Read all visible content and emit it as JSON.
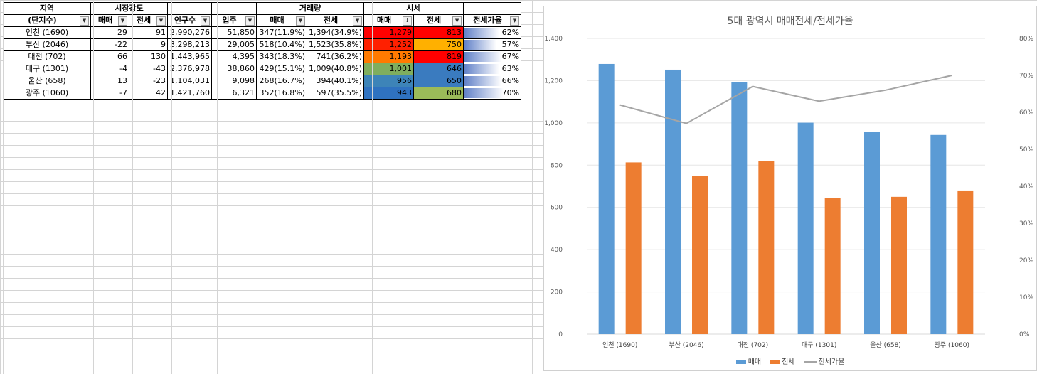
{
  "table": {
    "header1": [
      "지역",
      "시장강도",
      "",
      "",
      "",
      "거래량",
      "",
      "시세",
      "",
      ""
    ],
    "header2": [
      "(단지수)",
      "매매",
      "전세",
      "인구수",
      "입주",
      "매매",
      "전세",
      "매매",
      "전세",
      "전세가율"
    ],
    "sort_indicator": "↓",
    "rows": [
      {
        "region": "인천 (1690)",
        "s_buy": "29",
        "s_rent": "91",
        "pop": "2,990,276",
        "move_in": "51,850",
        "v_buy": "347(11.9%)",
        "v_rent": "1,394(34.9%)",
        "p_buy": "1,279",
        "p_rent": "813",
        "ratio": "62%",
        "ratio_val": 62,
        "c_buy": "#ff0000",
        "c_rent": "#ff0000"
      },
      {
        "region": "부산 (2046)",
        "s_buy": "-22",
        "s_rent": "9",
        "pop": "3,298,213",
        "move_in": "29,005",
        "v_buy": "518(10.4%)",
        "v_rent": "1,523(35.8%)",
        "p_buy": "1,252",
        "p_rent": "750",
        "ratio": "57%",
        "ratio_val": 57,
        "c_buy": "#ff2000",
        "c_rent": "#ffb000"
      },
      {
        "region": "대전 (702)",
        "s_buy": "66",
        "s_rent": "130",
        "pop": "1,443,965",
        "move_in": "4,395",
        "v_buy": "343(18.3%)",
        "v_rent": "741(36.2%)",
        "p_buy": "1,193",
        "p_rent": "819",
        "ratio": "67%",
        "ratio_val": 67,
        "c_buy": "#ff7a00",
        "c_rent": "#ff0000"
      },
      {
        "region": "대구 (1301)",
        "s_buy": "-4",
        "s_rent": "-43",
        "pop": "2,376,978",
        "move_in": "38,860",
        "v_buy": "429(15.1%)",
        "v_rent": "1,009(40.8%)",
        "p_buy": "1,001",
        "p_rent": "646",
        "ratio": "63%",
        "ratio_val": 63,
        "c_buy": "#7fae5e",
        "c_rent": "#3a7bbf"
      },
      {
        "region": "울산 (658)",
        "s_buy": "13",
        "s_rent": "-23",
        "pop": "1,104,031",
        "move_in": "9,098",
        "v_buy": "268(16.7%)",
        "v_rent": "394(40.1%)",
        "p_buy": "956",
        "p_rent": "650",
        "ratio": "66%",
        "ratio_val": 66,
        "c_buy": "#3d84b8",
        "c_rent": "#3a7bbf"
      },
      {
        "region": "광주 (1060)",
        "s_buy": "-7",
        "s_rent": "42",
        "pop": "1,421,760",
        "move_in": "6,321",
        "v_buy": "352(16.8%)",
        "v_rent": "597(35.5%)",
        "p_buy": "943",
        "p_rent": "680",
        "ratio": "70%",
        "ratio_val": 70,
        "c_buy": "#2f72c0",
        "c_rent": "#9bbb59"
      }
    ]
  },
  "chart_data": {
    "type": "bar",
    "title": "5대 광역시 매매전세/전세가율",
    "categories": [
      "인천 (1690)",
      "부산 (2046)",
      "대전 (702)",
      "대구 (1301)",
      "울산 (658)",
      "광주 (1060)"
    ],
    "series": [
      {
        "name": "매매",
        "type": "bar",
        "axis": "left",
        "color": "#5b9bd5",
        "values": [
          1279,
          1252,
          1193,
          1001,
          956,
          943
        ]
      },
      {
        "name": "전세",
        "type": "bar",
        "axis": "left",
        "color": "#ed7d31",
        "values": [
          813,
          750,
          819,
          646,
          650,
          680
        ]
      },
      {
        "name": "전세가율",
        "type": "line",
        "axis": "right",
        "color": "#a5a5a5",
        "values": [
          62,
          57,
          67,
          63,
          66,
          70
        ]
      }
    ],
    "ylim": [
      0,
      1400
    ],
    "yticks": [
      "0",
      "200",
      "400",
      "600",
      "800",
      "1,000",
      "1,200",
      "1,400"
    ],
    "y2lim": [
      0,
      80
    ],
    "y2ticks": [
      "0%",
      "10%",
      "20%",
      "30%",
      "40%",
      "50%",
      "60%",
      "70%",
      "80%"
    ],
    "legend": "bottom"
  }
}
